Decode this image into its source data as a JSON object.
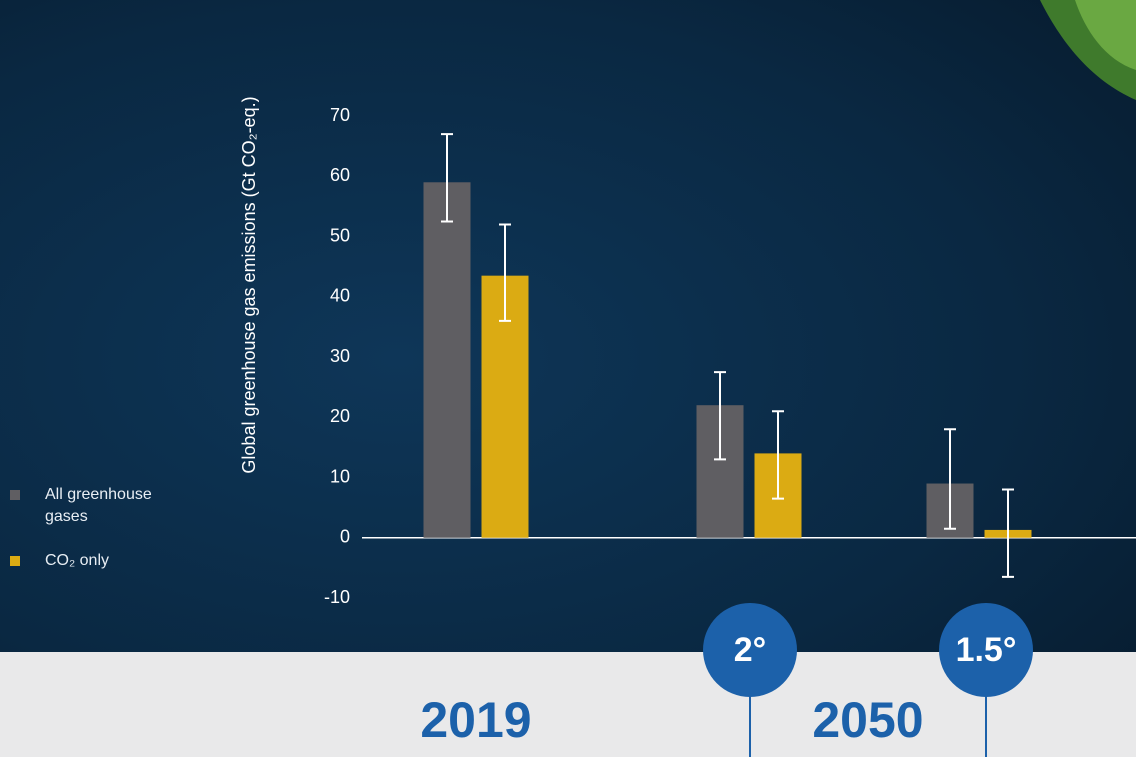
{
  "chart_data": {
    "type": "bar",
    "y_label": "Global greenhouse gas emissions (Gt CO₂-eq.)",
    "categories": [
      "2019",
      "2°",
      "1.5°"
    ],
    "annotations": [
      "2050"
    ],
    "series": [
      {
        "name": "All greenhouse gases",
        "color": "#5f5e62",
        "values": [
          59,
          22,
          9
        ],
        "error_low": [
          52.5,
          13,
          1.5
        ],
        "error_high": [
          67,
          27.5,
          18
        ]
      },
      {
        "name": "CO₂ only",
        "color": "#dbab13",
        "values": [
          43.5,
          14,
          1.3
        ],
        "error_low": [
          36,
          6.5,
          -6.5
        ],
        "error_high": [
          52,
          21,
          8
        ]
      }
    ],
    "ylim": [
      -10,
      70
    ],
    "yticks": [
      -10,
      0,
      10,
      20,
      30,
      40,
      50,
      60,
      70
    ]
  }
}
